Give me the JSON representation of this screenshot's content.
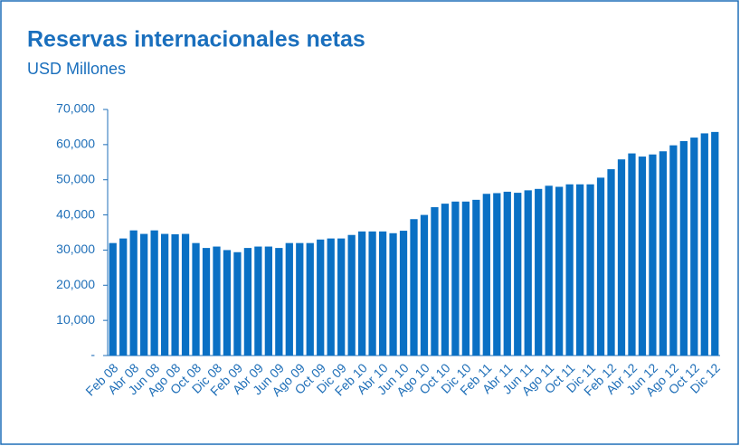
{
  "chart_data": {
    "type": "bar",
    "title": "Reservas internacionales netas",
    "subtitle": "USD Millones",
    "categories": [
      "Feb 08",
      null,
      "Abr 08",
      null,
      "Jun 08",
      null,
      "Ago 08",
      null,
      "Oct 08",
      null,
      "Dic 08",
      null,
      "Feb 09",
      null,
      "Abr 09",
      null,
      "Jun 09",
      null,
      "Ago 09",
      null,
      "Oct 09",
      null,
      "Dic 09",
      null,
      "Feb 10",
      null,
      "Abr 10",
      null,
      "Jun 10",
      null,
      "Ago 10",
      null,
      "Oct 10",
      null,
      "Dic 10",
      null,
      "Feb 11",
      null,
      "Abr 11",
      null,
      "Jun 11",
      null,
      "Ago 11",
      null,
      "Oct 11",
      null,
      "Dic 11",
      null,
      "Feb 12",
      null,
      "Abr 12",
      null,
      "Jun 12",
      null,
      "Ago 12",
      null,
      "Oct 12",
      null,
      "Dic 12"
    ],
    "values": [
      32000,
      33300,
      35600,
      34600,
      35600,
      34600,
      34500,
      34600,
      32000,
      30600,
      31000,
      30000,
      29400,
      30600,
      31000,
      31000,
      30600,
      32000,
      32000,
      32000,
      33000,
      33300,
      33300,
      34300,
      35300,
      35300,
      35300,
      34800,
      35500,
      38800,
      40000,
      42200,
      43200,
      43800,
      43800,
      44300,
      46000,
      46200,
      46600,
      46300,
      47000,
      47400,
      48300,
      48000,
      48700,
      48700,
      48700,
      50600,
      53000,
      55800,
      57500,
      56600,
      57200,
      58100,
      59800,
      61000,
      62000,
      63200,
      63600
    ],
    "color": "#0a70c4",
    "ylim": [
      0,
      70000
    ],
    "yticks": [
      {
        "value": 0,
        "label": "-"
      },
      {
        "value": 10000,
        "label": "10,000"
      },
      {
        "value": 20000,
        "label": "20,000"
      },
      {
        "value": 30000,
        "label": "30,000"
      },
      {
        "value": 40000,
        "label": "40,000"
      },
      {
        "value": 50000,
        "label": "50,000"
      },
      {
        "value": 60000,
        "label": "60,000"
      },
      {
        "value": 70000,
        "label": "70,000"
      }
    ],
    "grid": false
  }
}
